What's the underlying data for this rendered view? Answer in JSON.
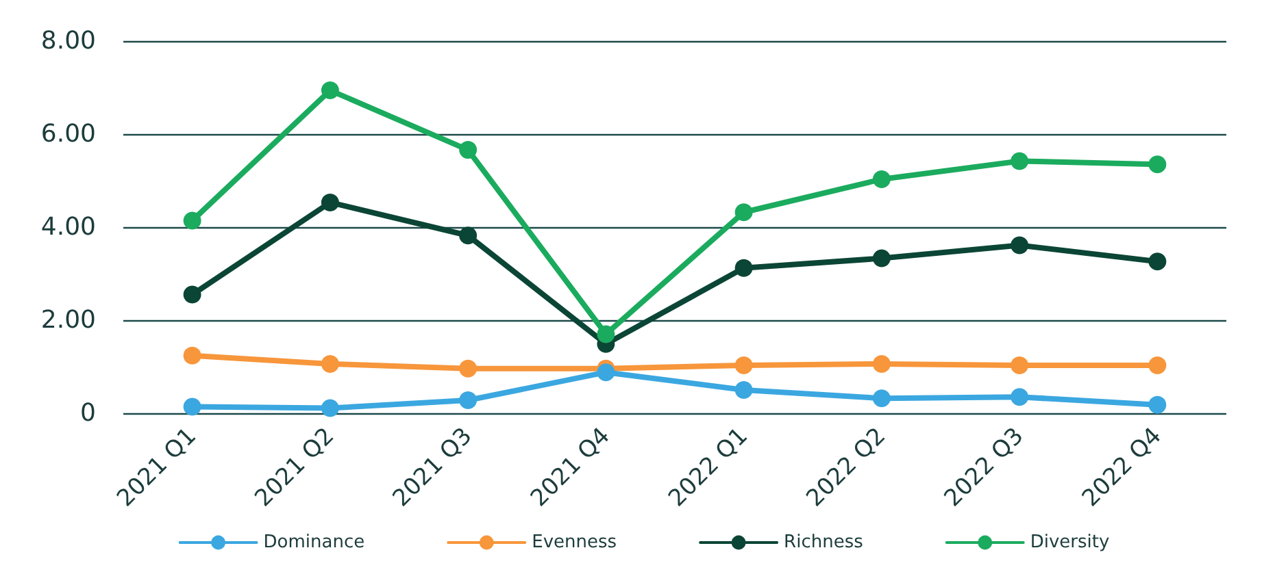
{
  "chart_data": {
    "type": "line",
    "categories": [
      "2021 Q1",
      "2021 Q2",
      "2021 Q3",
      "2021 Q4",
      "2022 Q1",
      "2022 Q2",
      "2022 Q3",
      "2022 Q4"
    ],
    "series": [
      {
        "name": "Dominance",
        "color": "#3ba7e0",
        "values": [
          0.14,
          0.11,
          0.28,
          0.88,
          0.5,
          0.32,
          0.35,
          0.18
        ]
      },
      {
        "name": "Evenness",
        "color": "#f7963b",
        "values": [
          1.24,
          1.06,
          0.96,
          0.96,
          1.03,
          1.06,
          1.03,
          1.03
        ]
      },
      {
        "name": "Richness",
        "color": "#0b4535",
        "values": [
          2.55,
          4.53,
          3.82,
          1.49,
          3.12,
          3.33,
          3.61,
          3.26
        ]
      },
      {
        "name": "Diversity",
        "color": "#1bab5e",
        "values": [
          4.14,
          6.94,
          5.66,
          1.7,
          4.32,
          5.03,
          5.42,
          5.35
        ]
      }
    ],
    "ylim": [
      0,
      8
    ],
    "yticks": [
      {
        "value": 0,
        "label": "0"
      },
      {
        "value": 2,
        "label": "2.00"
      },
      {
        "value": 4,
        "label": "4.00"
      },
      {
        "value": 6,
        "label": "6.00"
      },
      {
        "value": 8,
        "label": "8.00"
      }
    ],
    "grid": "y",
    "legend": "bottom",
    "marker": "circle",
    "line_style": "solid"
  }
}
